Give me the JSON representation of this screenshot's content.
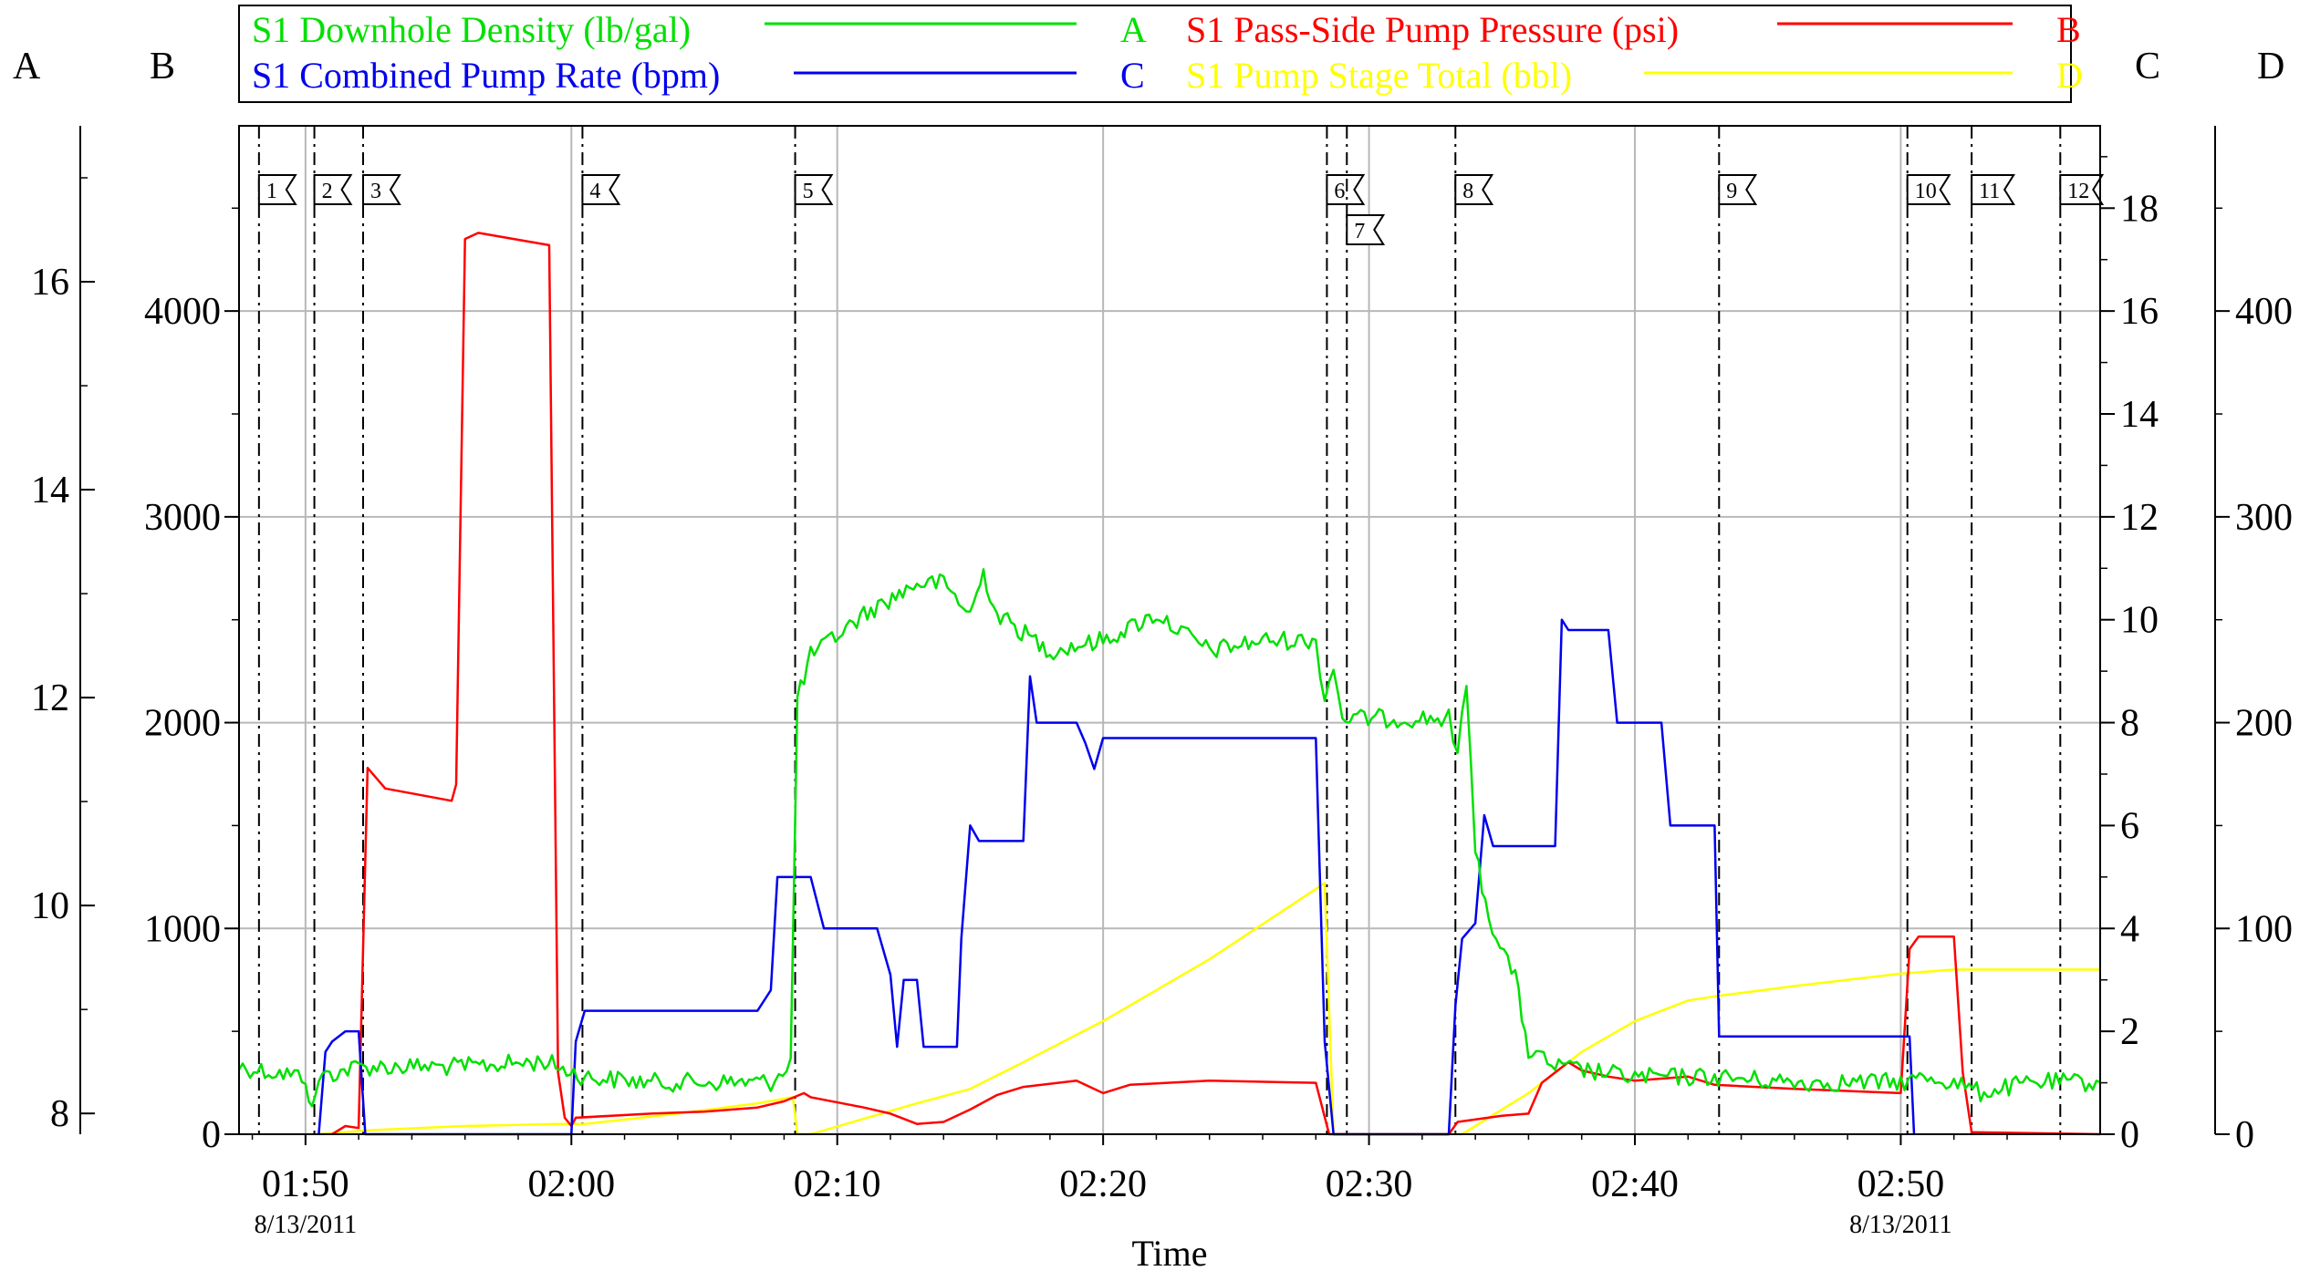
{
  "chart_data": {
    "type": "line",
    "xlabel": "Time",
    "x_range": [
      "01:47:30",
      "02:57:30"
    ],
    "x_ticks": [
      {
        "time": "01:50",
        "date": "8/13/2011"
      },
      {
        "time": "02:00",
        "date": ""
      },
      {
        "time": "02:10",
        "date": ""
      },
      {
        "time": "02:20",
        "date": ""
      },
      {
        "time": "02:30",
        "date": ""
      },
      {
        "time": "02:40",
        "date": ""
      },
      {
        "time": "02:50",
        "date": "8/13/2011"
      }
    ],
    "axes": [
      {
        "id": "A",
        "label": "A",
        "side": "left-outer",
        "range": [
          7.8,
          17.5
        ],
        "ticks": [
          8,
          10,
          12,
          14,
          16
        ]
      },
      {
        "id": "B",
        "label": "B",
        "side": "left-inner",
        "range": [
          0,
          4900
        ],
        "ticks": [
          0,
          1000,
          2000,
          3000,
          4000
        ]
      },
      {
        "id": "C",
        "label": "C",
        "side": "right-inner",
        "range": [
          0,
          19.6
        ],
        "ticks": [
          0,
          2,
          4,
          6,
          8,
          10,
          12,
          14,
          16,
          18
        ]
      },
      {
        "id": "D",
        "label": "D",
        "side": "right-outer",
        "range": [
          0,
          490
        ],
        "ticks": [
          0,
          100,
          200,
          300,
          400
        ]
      }
    ],
    "legend": {
      "placement": "top",
      "entries": [
        {
          "series": "density",
          "label": "S1 Downhole Density (lb/gal)",
          "axis_letter": "A"
        },
        {
          "series": "pressure",
          "label": "S1 Pass-Side Pump Pressure (psi)",
          "axis_letter": "B"
        },
        {
          "series": "rate",
          "label": "S1 Combined Pump Rate (bpm)",
          "axis_letter": "C"
        },
        {
          "series": "stage_total",
          "label": "S1 Pump Stage Total (bbl)",
          "axis_letter": "D"
        }
      ]
    },
    "series": [
      {
        "id": "density",
        "axis": "A",
        "color": "#00e000",
        "noise": 0.09,
        "points": [
          [
            "01:47:30",
            8.45
          ],
          [
            "01:50:00",
            8.35
          ],
          [
            "01:50:15",
            8.0
          ],
          [
            "01:50:30",
            8.35
          ],
          [
            "01:52:00",
            8.45
          ],
          [
            "01:56:00",
            8.45
          ],
          [
            "01:59:00",
            8.5
          ],
          [
            "02:00:30",
            8.35
          ],
          [
            "02:03:00",
            8.3
          ],
          [
            "02:07:30",
            8.3
          ],
          [
            "02:08:15",
            8.5
          ],
          [
            "02:08:30",
            12.0
          ],
          [
            "02:09:00",
            12.4
          ],
          [
            "02:11:00",
            12.8
          ],
          [
            "02:13:00",
            13.1
          ],
          [
            "02:14:00",
            13.1
          ],
          [
            "02:15:00",
            12.8
          ],
          [
            "02:15:30",
            13.2
          ],
          [
            "02:16:00",
            12.8
          ],
          [
            "02:18:00",
            12.45
          ],
          [
            "02:20:00",
            12.55
          ],
          [
            "02:22:00",
            12.8
          ],
          [
            "02:24:00",
            12.45
          ],
          [
            "02:26:00",
            12.55
          ],
          [
            "02:28:00",
            12.55
          ],
          [
            "02:28:20",
            12.0
          ],
          [
            "02:28:40",
            12.3
          ],
          [
            "02:29:00",
            11.8
          ],
          [
            "02:33:00",
            11.8
          ],
          [
            "02:33:20",
            11.4
          ],
          [
            "02:33:40",
            12.2
          ],
          [
            "02:34:00",
            10.5
          ],
          [
            "02:34:30",
            9.9
          ],
          [
            "02:35:30",
            9.3
          ],
          [
            "02:36:00",
            8.6
          ],
          [
            "02:37:00",
            8.45
          ],
          [
            "02:40:00",
            8.35
          ],
          [
            "02:43:00",
            8.35
          ],
          [
            "02:46:00",
            8.3
          ],
          [
            "02:50:00",
            8.3
          ],
          [
            "02:51:00",
            8.35
          ],
          [
            "02:52:00",
            8.3
          ],
          [
            "02:53:00",
            8.2
          ],
          [
            "02:55:00",
            8.3
          ],
          [
            "02:57:30",
            8.3
          ]
        ]
      },
      {
        "id": "pressure",
        "axis": "B",
        "color": "#ff0000",
        "noise": 0,
        "points": [
          [
            "01:51:00",
            0
          ],
          [
            "01:51:30",
            40
          ],
          [
            "01:52:00",
            30
          ],
          [
            "01:52:20",
            1780
          ],
          [
            "01:53:00",
            1680
          ],
          [
            "01:55:30",
            1620
          ],
          [
            "01:55:40",
            1700
          ],
          [
            "01:56:00",
            4350
          ],
          [
            "01:56:30",
            4380
          ],
          [
            "01:59:10",
            4320
          ],
          [
            "01:59:30",
            300
          ],
          [
            "01:59:45",
            80
          ],
          [
            "02:00:00",
            40
          ],
          [
            "02:00:10",
            80
          ],
          [
            "02:03:00",
            100
          ],
          [
            "02:05:00",
            110
          ],
          [
            "02:07:00",
            130
          ],
          [
            "02:08:00",
            160
          ],
          [
            "02:08:45",
            200
          ],
          [
            "02:09:00",
            180
          ],
          [
            "02:11:00",
            130
          ],
          [
            "02:12:00",
            100
          ],
          [
            "02:13:00",
            50
          ],
          [
            "02:14:00",
            60
          ],
          [
            "02:15:00",
            120
          ],
          [
            "02:16:00",
            190
          ],
          [
            "02:17:00",
            230
          ],
          [
            "02:19:00",
            260
          ],
          [
            "02:20:00",
            200
          ],
          [
            "02:21:00",
            240
          ],
          [
            "02:24:00",
            260
          ],
          [
            "02:28:00",
            250
          ],
          [
            "02:28:30",
            0
          ],
          [
            "02:33:00",
            0
          ],
          [
            "02:33:20",
            60
          ],
          [
            "02:35:00",
            90
          ],
          [
            "02:36:00",
            100
          ],
          [
            "02:36:30",
            250
          ],
          [
            "02:37:30",
            350
          ],
          [
            "02:38:00",
            310
          ],
          [
            "02:39:00",
            280
          ],
          [
            "02:40:00",
            260
          ],
          [
            "02:42:00",
            280
          ],
          [
            "02:43:00",
            240
          ],
          [
            "02:46:00",
            220
          ],
          [
            "02:50:00",
            200
          ],
          [
            "02:50:20",
            900
          ],
          [
            "02:50:40",
            960
          ],
          [
            "02:51:30",
            960
          ],
          [
            "02:52:00",
            960
          ],
          [
            "02:52:20",
            300
          ],
          [
            "02:52:40",
            10
          ],
          [
            "02:57:30",
            0
          ]
        ]
      },
      {
        "id": "rate",
        "axis": "C",
        "color": "#0000ee",
        "noise": 0,
        "points": [
          [
            "01:50:30",
            0
          ],
          [
            "01:50:45",
            1.6
          ],
          [
            "01:51:00",
            1.8
          ],
          [
            "01:51:30",
            2.0
          ],
          [
            "01:52:00",
            2.0
          ],
          [
            "01:52:15",
            0
          ],
          [
            "01:55:30",
            0
          ],
          [
            "02:00:00",
            0
          ],
          [
            "02:00:10",
            1.8
          ],
          [
            "02:00:30",
            2.4
          ],
          [
            "02:07:00",
            2.4
          ],
          [
            "02:07:30",
            2.8
          ],
          [
            "02:07:45",
            5.0
          ],
          [
            "02:09:00",
            5.0
          ],
          [
            "02:09:30",
            4.0
          ],
          [
            "02:11:30",
            4.0
          ],
          [
            "02:12:00",
            3.1
          ],
          [
            "02:12:15",
            1.7
          ],
          [
            "02:12:30",
            3.0
          ],
          [
            "02:13:00",
            3.0
          ],
          [
            "02:13:15",
            1.7
          ],
          [
            "02:14:30",
            1.7
          ],
          [
            "02:14:40",
            3.8
          ],
          [
            "02:15:00",
            6.0
          ],
          [
            "02:15:20",
            5.7
          ],
          [
            "02:17:00",
            5.7
          ],
          [
            "02:17:15",
            8.9
          ],
          [
            "02:17:30",
            8.0
          ],
          [
            "02:19:00",
            8.0
          ],
          [
            "02:19:20",
            7.6
          ],
          [
            "02:19:40",
            7.1
          ],
          [
            "02:20:00",
            7.7
          ],
          [
            "02:28:00",
            7.7
          ],
          [
            "02:28:20",
            1.8
          ],
          [
            "02:28:40",
            0
          ],
          [
            "02:33:00",
            0
          ],
          [
            "02:33:15",
            2.5
          ],
          [
            "02:33:30",
            3.8
          ],
          [
            "02:34:00",
            4.1
          ],
          [
            "02:34:20",
            6.2
          ],
          [
            "02:34:40",
            5.6
          ],
          [
            "02:37:00",
            5.6
          ],
          [
            "02:37:15",
            10.0
          ],
          [
            "02:37:30",
            9.8
          ],
          [
            "02:39:00",
            9.8
          ],
          [
            "02:39:20",
            8.0
          ],
          [
            "02:41:00",
            8.0
          ],
          [
            "02:41:20",
            6.0
          ],
          [
            "02:43:00",
            6.0
          ],
          [
            "02:43:10",
            1.9
          ],
          [
            "02:50:20",
            1.9
          ],
          [
            "02:50:30",
            0
          ]
        ]
      },
      {
        "id": "stage_total",
        "axis": "D",
        "color": "#ffff00",
        "noise": 0,
        "points": [
          [
            "01:50:30",
            0
          ],
          [
            "01:52:30",
            2
          ],
          [
            "01:56:00",
            4
          ],
          [
            "01:59:30",
            5
          ],
          [
            "02:00:30",
            5
          ],
          [
            "02:04:00",
            10
          ],
          [
            "02:07:00",
            15
          ],
          [
            "02:08:20",
            18
          ],
          [
            "02:08:30",
            0
          ],
          [
            "02:09:00",
            0
          ],
          [
            "02:13:00",
            15
          ],
          [
            "02:15:00",
            22
          ],
          [
            "02:17:00",
            35
          ],
          [
            "02:20:00",
            55
          ],
          [
            "02:24:00",
            85
          ],
          [
            "02:28:20",
            122
          ],
          [
            "02:28:40",
            0
          ],
          [
            "02:33:30",
            0
          ],
          [
            "02:36:00",
            20
          ],
          [
            "02:38:00",
            40
          ],
          [
            "02:40:00",
            55
          ],
          [
            "02:42:00",
            65
          ],
          [
            "02:43:00",
            67
          ],
          [
            "02:46:00",
            72
          ],
          [
            "02:50:00",
            78
          ],
          [
            "02:52:00",
            80
          ],
          [
            "02:57:30",
            80
          ]
        ]
      }
    ],
    "stage_markers": [
      {
        "label": "1",
        "time": "01:48:15"
      },
      {
        "label": "2",
        "time": "01:50:20"
      },
      {
        "label": "3",
        "time": "01:52:10"
      },
      {
        "label": "4",
        "time": "02:00:25"
      },
      {
        "label": "5",
        "time": "02:08:25"
      },
      {
        "label": "6",
        "time": "02:28:25"
      },
      {
        "label": "7",
        "time": "02:29:10"
      },
      {
        "label": "8",
        "time": "02:33:15"
      },
      {
        "label": "9",
        "time": "02:43:10"
      },
      {
        "label": "10",
        "time": "02:50:15"
      },
      {
        "label": "11",
        "time": "02:52:40"
      },
      {
        "label": "12",
        "time": "02:56:00"
      }
    ]
  }
}
